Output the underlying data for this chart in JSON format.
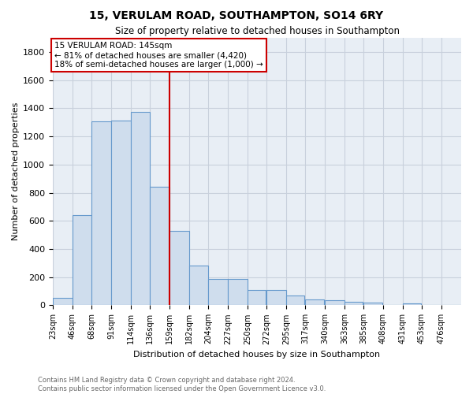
{
  "title": "15, VERULAM ROAD, SOUTHAMPTON, SO14 6RY",
  "subtitle": "Size of property relative to detached houses in Southampton",
  "xlabel": "Distribution of detached houses by size in Southampton",
  "ylabel": "Number of detached properties",
  "bar_color": "#cfdded",
  "bar_edge_color": "#6699cc",
  "background_color": "#e8eef5",
  "grid_color": "#c8d0dc",
  "vline_color": "#cc0000",
  "annotation_title": "15 VERULAM ROAD: 145sqm",
  "annotation_line1": "← 81% of detached houses are smaller (4,420)",
  "annotation_line2": "18% of semi-detached houses are larger (1,000) →",
  "footer_line1": "Contains HM Land Registry data © Crown copyright and database right 2024.",
  "footer_line2": "Contains public sector information licensed under the Open Government Licence v3.0.",
  "bins": [
    23,
    46,
    68,
    91,
    114,
    136,
    159,
    182,
    204,
    227,
    250,
    272,
    295,
    317,
    340,
    363,
    385,
    408,
    431,
    453,
    476
  ],
  "counts": [
    55,
    640,
    1305,
    1310,
    1375,
    840,
    530,
    285,
    185,
    185,
    108,
    108,
    68,
    40,
    38,
    25,
    18,
    5,
    13,
    5,
    0
  ],
  "ylim": [
    0,
    1900
  ],
  "yticks": [
    0,
    200,
    400,
    600,
    800,
    1000,
    1200,
    1400,
    1600,
    1800
  ],
  "vline_x": 159
}
